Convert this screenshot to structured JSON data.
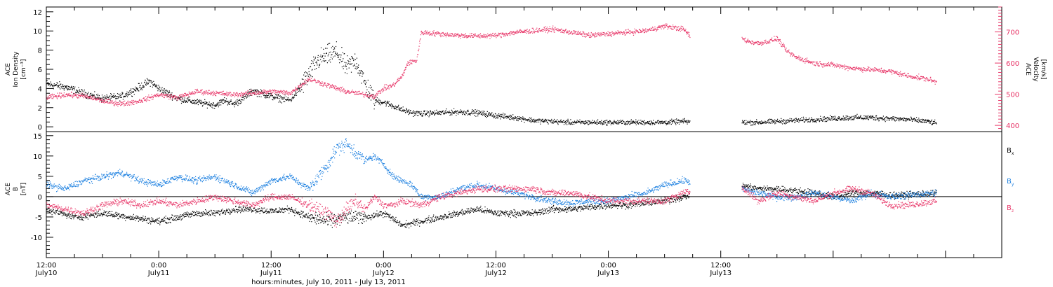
{
  "chart_data": [
    {
      "type": "scatter",
      "panel": "plasma",
      "left_axis": {
        "label_lines": [
          "ACE",
          "Ion Density",
          "[cm⁻³]"
        ],
        "ylim": [
          -0.5,
          12.5
        ],
        "ticks": [
          0,
          2,
          4,
          6,
          8,
          10,
          12
        ],
        "color": "#000000"
      },
      "right_axis": {
        "label_lines": [
          "ACE",
          "Velocity",
          "[km/s]"
        ],
        "ylim": [
          380,
          780
        ],
        "ticks": [
          400,
          500,
          600,
          700
        ],
        "color": "#e8386a"
      },
      "series": [
        {
          "color": "#000000",
          "axis": "left",
          "points": [
            [
              0,
              4.5
            ],
            [
              2,
              4.2
            ],
            [
              4,
              3.5
            ],
            [
              6,
              3.0
            ],
            [
              8,
              3.2
            ],
            [
              10,
              4.2
            ],
            [
              11,
              4.8
            ],
            [
              12,
              4.0
            ],
            [
              14,
              3.0
            ],
            [
              16,
              2.6
            ],
            [
              18,
              2.3
            ],
            [
              19,
              2.8
            ],
            [
              20,
              2.4
            ],
            [
              21,
              3.0
            ],
            [
              22,
              3.8
            ],
            [
              24,
              3.2
            ],
            [
              26,
              2.8
            ],
            [
              27,
              4.0
            ],
            [
              28,
              5.5
            ],
            [
              29,
              7.0
            ],
            [
              30,
              7.5
            ],
            [
              31,
              7.8
            ],
            [
              32,
              6.2
            ],
            [
              33,
              7.0
            ],
            [
              34,
              4.5
            ],
            [
              35,
              2.8
            ],
            [
              36,
              2.6
            ],
            [
              37,
              2.2
            ],
            [
              38,
              1.8
            ],
            [
              39,
              1.5
            ],
            [
              40,
              1.4
            ],
            [
              42,
              1.5
            ],
            [
              44,
              1.6
            ],
            [
              46,
              1.5
            ],
            [
              48,
              1.2
            ],
            [
              50,
              1.0
            ],
            [
              52,
              0.7
            ],
            [
              54,
              0.6
            ],
            [
              56,
              0.5
            ],
            [
              58,
              0.5
            ],
            [
              60,
              0.5
            ],
            [
              62,
              0.5
            ],
            [
              64,
              0.5
            ],
            [
              66,
              0.5
            ],
            [
              68,
              0.6
            ],
            [
              70,
              0.5
            ],
            [
              72,
              0.5
            ],
            [
              76,
              0.5
            ],
            [
              78,
              0.6
            ],
            [
              80,
              0.7
            ],
            [
              82,
              0.8
            ],
            [
              84,
              0.9
            ],
            [
              86,
              1.0
            ],
            [
              88,
              1.0
            ],
            [
              90,
              0.9
            ],
            [
              92,
              0.8
            ],
            [
              94,
              0.6
            ],
            [
              95,
              0.4
            ]
          ],
          "gaps": [
            [
              68.7,
              74.2
            ]
          ]
        },
        {
          "color": "#e8386a",
          "axis": "right",
          "points": [
            [
              0,
              490
            ],
            [
              2,
              500
            ],
            [
              4,
              495
            ],
            [
              6,
              480
            ],
            [
              8,
              470
            ],
            [
              10,
              480
            ],
            [
              12,
              500
            ],
            [
              14,
              490
            ],
            [
              16,
              510
            ],
            [
              18,
              505
            ],
            [
              20,
              500
            ],
            [
              22,
              505
            ],
            [
              24,
              510
            ],
            [
              26,
              505
            ],
            [
              28,
              550
            ],
            [
              30,
              530
            ],
            [
              32,
              510
            ],
            [
              34,
              500
            ],
            [
              35,
              495
            ],
            [
              36,
              520
            ],
            [
              37,
              530
            ],
            [
              38,
              560
            ],
            [
              38.5,
              600
            ],
            [
              39.5,
              610
            ],
            [
              40,
              700
            ],
            [
              42,
              695
            ],
            [
              44,
              690
            ],
            [
              46,
              688
            ],
            [
              48,
              690
            ],
            [
              50,
              700
            ],
            [
              52,
              705
            ],
            [
              54,
              710
            ],
            [
              56,
              700
            ],
            [
              58,
              690
            ],
            [
              60,
              695
            ],
            [
              62,
              700
            ],
            [
              64,
              705
            ],
            [
              66,
              720
            ],
            [
              68,
              710
            ],
            [
              68.6,
              690
            ],
            [
              74.2,
              680
            ],
            [
              75,
              670
            ],
            [
              76,
              665
            ],
            [
              77,
              670
            ],
            [
              78,
              680
            ],
            [
              79,
              640
            ],
            [
              80,
              620
            ],
            [
              81,
              610
            ],
            [
              82,
              600
            ],
            [
              84,
              595
            ],
            [
              86,
              585
            ],
            [
              88,
              580
            ],
            [
              90,
              575
            ],
            [
              92,
              560
            ],
            [
              94,
              550
            ],
            [
              95,
              540
            ]
          ],
          "gaps": [
            [
              68.7,
              74.2
            ]
          ]
        }
      ]
    },
    {
      "type": "scatter",
      "panel": "magnetic",
      "left_axis": {
        "label_lines": [
          "ACE",
          "B",
          "[nT]"
        ],
        "ylim": [
          -15,
          16
        ],
        "ticks": [
          -10,
          -5,
          0,
          5,
          10,
          15
        ],
        "color": "#000000"
      },
      "legend": [
        {
          "label": "B",
          "sub": "x",
          "color": "#000000"
        },
        {
          "label": "B",
          "sub": "y",
          "color": "#1a7fe0"
        },
        {
          "label": "B",
          "sub": "z",
          "color": "#e8386a"
        }
      ],
      "series": [
        {
          "color": "#000000",
          "name": "Bx",
          "points": [
            [
              0,
              -3
            ],
            [
              3,
              -5
            ],
            [
              6,
              -4
            ],
            [
              9,
              -5
            ],
            [
              12,
              -6
            ],
            [
              14,
              -5
            ],
            [
              16,
              -4
            ],
            [
              18,
              -4
            ],
            [
              20,
              -3
            ],
            [
              22,
              -3
            ],
            [
              24,
              -3.5
            ],
            [
              26,
              -3
            ],
            [
              28,
              -5
            ],
            [
              30,
              -6
            ],
            [
              32,
              -5
            ],
            [
              34,
              -5
            ],
            [
              36,
              -4
            ],
            [
              38,
              -7
            ],
            [
              40,
              -6
            ],
            [
              42,
              -5
            ],
            [
              44,
              -4
            ],
            [
              46,
              -3
            ],
            [
              48,
              -4
            ],
            [
              50,
              -4
            ],
            [
              52,
              -4
            ],
            [
              54,
              -3
            ],
            [
              56,
              -3
            ],
            [
              58,
              -2.5
            ],
            [
              60,
              -2
            ],
            [
              62,
              -2
            ],
            [
              64,
              -1.5
            ],
            [
              66,
              -1
            ],
            [
              68,
              0
            ],
            [
              74,
              3
            ],
            [
              76,
              2
            ],
            [
              78,
              2
            ],
            [
              80,
              1.5
            ],
            [
              82,
              1
            ],
            [
              84,
              0
            ],
            [
              86,
              1
            ],
            [
              88,
              1
            ],
            [
              90,
              0.5
            ],
            [
              92,
              0.5
            ],
            [
              95,
              1
            ]
          ],
          "gaps": [
            [
              68.7,
              74.2
            ]
          ]
        },
        {
          "color": "#1a7fe0",
          "name": "By",
          "points": [
            [
              0,
              3
            ],
            [
              2,
              2
            ],
            [
              4,
              4
            ],
            [
              6,
              5
            ],
            [
              8,
              6
            ],
            [
              10,
              4
            ],
            [
              12,
              3
            ],
            [
              14,
              5
            ],
            [
              16,
              4
            ],
            [
              18,
              5
            ],
            [
              20,
              3
            ],
            [
              22,
              1
            ],
            [
              24,
              4
            ],
            [
              26,
              5
            ],
            [
              28,
              2
            ],
            [
              30,
              8
            ],
            [
              31,
              12
            ],
            [
              32,
              13
            ],
            [
              33,
              11
            ],
            [
              34,
              9
            ],
            [
              35,
              10
            ],
            [
              36,
              8
            ],
            [
              37,
              5
            ],
            [
              38,
              4
            ],
            [
              39,
              3
            ],
            [
              40,
              0
            ],
            [
              42,
              0
            ],
            [
              44,
              2
            ],
            [
              46,
              3
            ],
            [
              48,
              2
            ],
            [
              50,
              1
            ],
            [
              52,
              0
            ],
            [
              54,
              -1
            ],
            [
              56,
              -1.5
            ],
            [
              58,
              -1
            ],
            [
              60,
              -1
            ],
            [
              62,
              0
            ],
            [
              64,
              1
            ],
            [
              66,
              3
            ],
            [
              68,
              4
            ],
            [
              74,
              2
            ],
            [
              76,
              1
            ],
            [
              78,
              0
            ],
            [
              80,
              0
            ],
            [
              82,
              1
            ],
            [
              84,
              0
            ],
            [
              86,
              -1
            ],
            [
              88,
              1
            ],
            [
              90,
              0
            ],
            [
              92,
              0.5
            ],
            [
              95,
              1
            ]
          ],
          "gaps": [
            [
              68.7,
              74.2
            ]
          ]
        },
        {
          "color": "#e8386a",
          "name": "Bz",
          "points": [
            [
              0,
              -2
            ],
            [
              2,
              -3
            ],
            [
              4,
              -4
            ],
            [
              6,
              -2
            ],
            [
              8,
              -1
            ],
            [
              10,
              -2
            ],
            [
              12,
              -1
            ],
            [
              14,
              -2
            ],
            [
              16,
              -1
            ],
            [
              18,
              0
            ],
            [
              20,
              -1
            ],
            [
              22,
              -2
            ],
            [
              24,
              0
            ],
            [
              26,
              0
            ],
            [
              28,
              -2
            ],
            [
              30,
              -4
            ],
            [
              31,
              -6
            ],
            [
              32,
              -3
            ],
            [
              33,
              -1
            ],
            [
              34,
              -3
            ],
            [
              35,
              0
            ],
            [
              36,
              -2
            ],
            [
              37,
              -2
            ],
            [
              38,
              -1
            ],
            [
              40,
              -2
            ],
            [
              42,
              0
            ],
            [
              44,
              1
            ],
            [
              46,
              2
            ],
            [
              48,
              2
            ],
            [
              50,
              2
            ],
            [
              52,
              2
            ],
            [
              54,
              1
            ],
            [
              56,
              1
            ],
            [
              58,
              0
            ],
            [
              60,
              -1
            ],
            [
              62,
              -1
            ],
            [
              64,
              -1
            ],
            [
              66,
              -1
            ],
            [
              68,
              1
            ],
            [
              74,
              3
            ],
            [
              76,
              -1
            ],
            [
              78,
              1
            ],
            [
              80,
              0
            ],
            [
              82,
              -1
            ],
            [
              84,
              1
            ],
            [
              86,
              2
            ],
            [
              88,
              1
            ],
            [
              90,
              -2
            ],
            [
              92,
              -2
            ],
            [
              95,
              -1
            ]
          ],
          "gaps": [
            [
              68.7,
              74.2
            ]
          ]
        }
      ]
    }
  ],
  "x_axis": {
    "range_hours": [
      0,
      102
    ],
    "ticks": [
      {
        "hour": 0,
        "time": "12:00",
        "date": "July10"
      },
      {
        "hour": 12,
        "time": "0:00",
        "date": "July11"
      },
      {
        "hour": 24,
        "time": "12:00",
        "date": "July11"
      },
      {
        "hour": 36,
        "time": "0:00",
        "date": "July12"
      },
      {
        "hour": 48,
        "time": "12:00",
        "date": "July12"
      },
      {
        "hour": 60,
        "time": "0:00",
        "date": "July13"
      },
      {
        "hour": 72,
        "time": "12:00",
        "date": "July13"
      }
    ],
    "label": "hours:minutes, July 10, 2011 - July 13, 2011"
  }
}
